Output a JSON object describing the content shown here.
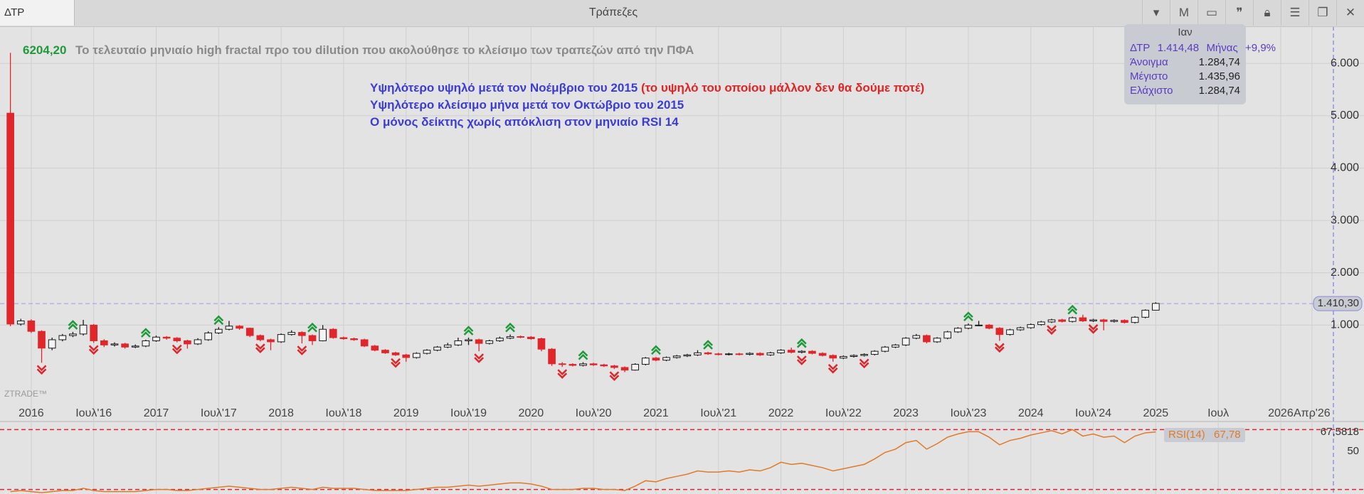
{
  "header": {
    "symbol": "ΔΤΡ",
    "title": "Τράπεζες",
    "interval": "M"
  },
  "watermark": "ZTRADE™",
  "info_box": {
    "period": "Ιαν",
    "symbol": "ΔΤΡ",
    "price": "1.414,48",
    "interval": "Μήνας",
    "change": "+9,9%",
    "rows": [
      {
        "label": "Άνοιγμα",
        "value": "1.284,74"
      },
      {
        "label": "Μέγιστο",
        "value": "1.435,96"
      },
      {
        "label": "Ελάχιστο",
        "value": "1.284,74"
      }
    ]
  },
  "chart_data": [
    {
      "type": "candlestick",
      "annotations": [
        {
          "text": "6204,20",
          "color": "#1f9a3a"
        },
        {
          "text": "Το τελευταίο μηνιαίο high fractal προ του dilution που ακολούθησε το κλείσιμο των τραπεζών από την ΠΦΑ",
          "color": "#8a8a8a"
        },
        {
          "text": "Υψηλότερο υψηλό μετά τον Νοέμβριο του 2015",
          "color": "#3b3bd8"
        },
        {
          "text": "(το υψηλό του οποίου μάλλον δεν θα δούμε ποτέ)",
          "color": "#e02424"
        },
        {
          "text": "Υψηλότερο κλείσιμο μήνα μετά τον Οκτώβριο του 2015",
          "color": "#3b3bd8"
        },
        {
          "text": "Ο μόνος δείκτης χωρίς απόκλιση στον μηνιαίο RSI 14",
          "color": "#3b3bd8"
        }
      ],
      "x": [
        "2015-11",
        "2015-12",
        "2016-01",
        "2016-02",
        "2016-03",
        "2016-04",
        "2016-05",
        "2016-06",
        "2016-07",
        "2016-08",
        "2016-09",
        "2016-10",
        "2016-11",
        "2016-12",
        "2017-01",
        "2017-02",
        "2017-03",
        "2017-04",
        "2017-05",
        "2017-06",
        "2017-07",
        "2017-08",
        "2017-09",
        "2017-10",
        "2017-11",
        "2017-12",
        "2018-01",
        "2018-02",
        "2018-03",
        "2018-04",
        "2018-05",
        "2018-06",
        "2018-07",
        "2018-08",
        "2018-09",
        "2018-10",
        "2018-11",
        "2018-12",
        "2019-01",
        "2019-02",
        "2019-03",
        "2019-04",
        "2019-05",
        "2019-06",
        "2019-07",
        "2019-08",
        "2019-09",
        "2019-10",
        "2019-11",
        "2019-12",
        "2020-01",
        "2020-02",
        "2020-03",
        "2020-04",
        "2020-05",
        "2020-06",
        "2020-07",
        "2020-08",
        "2020-09",
        "2020-10",
        "2020-11",
        "2020-12",
        "2021-01",
        "2021-02",
        "2021-03",
        "2021-04",
        "2021-05",
        "2021-06",
        "2021-07",
        "2021-08",
        "2021-09",
        "2021-10",
        "2021-11",
        "2021-12",
        "2022-01",
        "2022-02",
        "2022-03",
        "2022-04",
        "2022-05",
        "2022-06",
        "2022-07",
        "2022-08",
        "2022-09",
        "2022-10",
        "2022-11",
        "2022-12",
        "2023-01",
        "2023-02",
        "2023-03",
        "2023-04",
        "2023-05",
        "2023-06",
        "2023-07",
        "2023-08",
        "2023-09",
        "2023-10",
        "2023-11",
        "2023-12",
        "2024-01",
        "2024-02",
        "2024-03",
        "2024-04",
        "2024-05",
        "2024-06",
        "2024-07",
        "2024-08",
        "2024-09",
        "2024-10",
        "2024-11",
        "2024-12",
        "2025-01"
      ],
      "open": [
        5050,
        1020,
        1080,
        880,
        560,
        720,
        800,
        830,
        1000,
        700,
        620,
        640,
        580,
        600,
        700,
        770,
        750,
        700,
        640,
        720,
        850,
        920,
        980,
        940,
        800,
        720,
        680,
        820,
        860,
        800,
        700,
        920,
        760,
        740,
        720,
        600,
        520,
        470,
        430,
        380,
        460,
        520,
        580,
        620,
        700,
        720,
        650,
        700,
        750,
        780,
        770,
        740,
        540,
        260,
        250,
        230,
        260,
        240,
        220,
        190,
        140,
        250,
        370,
        330,
        380,
        410,
        430,
        470,
        450,
        440,
        450,
        440,
        460,
        430,
        470,
        520,
        480,
        500,
        460,
        420,
        370,
        400,
        420,
        440,
        500,
        580,
        620,
        750,
        800,
        680,
        750,
        870,
        940,
        1000,
        1000,
        940,
        820,
        910,
        950,
        1010,
        1060,
        1100,
        1070,
        1140,
        1080,
        1100,
        1070,
        1090,
        1050,
        1150,
        1284.74
      ],
      "high": [
        6204.2,
        1120,
        1110,
        900,
        760,
        830,
        870,
        1100,
        1020,
        730,
        670,
        660,
        630,
        720,
        800,
        790,
        770,
        720,
        750,
        880,
        960,
        1080,
        1000,
        950,
        820,
        740,
        840,
        900,
        880,
        820,
        1000,
        940,
        780,
        760,
        740,
        620,
        540,
        490,
        450,
        480,
        540,
        600,
        660,
        760,
        760,
        740,
        720,
        780,
        820,
        800,
        790,
        760,
        560,
        290,
        270,
        290,
        280,
        260,
        240,
        210,
        270,
        390,
        390,
        400,
        430,
        450,
        520,
        490,
        470,
        470,
        470,
        480,
        480,
        490,
        540,
        570,
        520,
        520,
        480,
        440,
        420,
        440,
        460,
        520,
        600,
        640,
        770,
        830,
        820,
        770,
        890,
        960,
        1030,
        1080,
        1020,
        960,
        930,
        970,
        1030,
        1080,
        1120,
        1120,
        1160,
        1200,
        1120,
        1120,
        1110,
        1110,
        1170,
        1300,
        1435.96
      ],
      "low": [
        980,
        990,
        850,
        280,
        520,
        690,
        770,
        800,
        660,
        580,
        590,
        550,
        560,
        580,
        680,
        720,
        670,
        550,
        620,
        700,
        830,
        900,
        910,
        770,
        690,
        520,
        660,
        800,
        650,
        620,
        690,
        740,
        720,
        700,
        580,
        500,
        450,
        410,
        300,
        360,
        440,
        500,
        560,
        600,
        620,
        500,
        630,
        680,
        730,
        750,
        720,
        500,
        220,
        200,
        210,
        210,
        220,
        200,
        160,
        100,
        130,
        230,
        310,
        310,
        360,
        390,
        410,
        430,
        420,
        420,
        420,
        420,
        410,
        410,
        450,
        460,
        460,
        440,
        400,
        300,
        350,
        380,
        400,
        420,
        480,
        560,
        600,
        730,
        650,
        660,
        730,
        850,
        920,
        980,
        920,
        700,
        800,
        890,
        930,
        990,
        1040,
        1050,
        1050,
        1060,
        1060,
        900,
        1050,
        1030,
        1030,
        1130,
        1284.74
      ],
      "close": [
        1020,
        1080,
        880,
        560,
        720,
        800,
        830,
        1000,
        700,
        620,
        640,
        580,
        600,
        700,
        770,
        750,
        700,
        640,
        720,
        850,
        920,
        980,
        940,
        800,
        720,
        680,
        820,
        860,
        800,
        700,
        920,
        760,
        740,
        720,
        600,
        520,
        470,
        430,
        380,
        460,
        520,
        580,
        620,
        700,
        720,
        650,
        700,
        750,
        780,
        770,
        740,
        540,
        260,
        250,
        230,
        260,
        240,
        220,
        190,
        140,
        250,
        370,
        330,
        380,
        410,
        430,
        470,
        450,
        440,
        450,
        440,
        460,
        430,
        470,
        520,
        480,
        500,
        460,
        420,
        370,
        400,
        420,
        440,
        500,
        580,
        620,
        750,
        800,
        680,
        750,
        870,
        940,
        1000,
        1000,
        940,
        820,
        910,
        950,
        1010,
        1060,
        1100,
        1070,
        1140,
        1080,
        1100,
        1070,
        1090,
        1050,
        1150,
        1284.74,
        1414.48
      ],
      "up_color": "#1a1a1a",
      "up_fill": "#f4f4f4",
      "down_color": "#e0262a",
      "fractals_up": [
        "2016-05",
        "2016-12",
        "2017-07",
        "2018-04",
        "2019-07",
        "2019-11",
        "2020-06",
        "2021-01",
        "2021-06",
        "2022-03",
        "2023-07",
        "2024-05"
      ],
      "fractals_down": [
        "2016-02",
        "2016-07",
        "2017-03",
        "2017-11",
        "2018-03",
        "2018-12",
        "2019-08",
        "2020-04",
        "2020-09",
        "2022-03",
        "2022-06",
        "2022-09",
        "2023-10",
        "2024-03",
        "2024-07"
      ],
      "fractal_up_color": "#1f9a3a",
      "fractal_down_color": "#e0262a",
      "last_price": {
        "value": 1410.3,
        "label": "1.410,30"
      },
      "xlim": [
        "2015-10",
        "2026-09"
      ],
      "xticks": [
        {
          "value": "2016-01",
          "label": "2016"
        },
        {
          "value": "2016-07",
          "label": "Ιουλ'16"
        },
        {
          "value": "2017-01",
          "label": "2017"
        },
        {
          "value": "2017-07",
          "label": "Ιουλ'17"
        },
        {
          "value": "2018-01",
          "label": "2018"
        },
        {
          "value": "2018-07",
          "label": "Ιουλ'18"
        },
        {
          "value": "2019-01",
          "label": "2019"
        },
        {
          "value": "2019-07",
          "label": "Ιουλ'19"
        },
        {
          "value": "2020-01",
          "label": "2020"
        },
        {
          "value": "2020-07",
          "label": "Ιουλ'20"
        },
        {
          "value": "2021-01",
          "label": "2021"
        },
        {
          "value": "2021-07",
          "label": "Ιουλ'21"
        },
        {
          "value": "2022-01",
          "label": "2022"
        },
        {
          "value": "2022-07",
          "label": "Ιουλ'22"
        },
        {
          "value": "2023-01",
          "label": "2023"
        },
        {
          "value": "2023-07",
          "label": "Ιουλ'23"
        },
        {
          "value": "2024-01",
          "label": "2024"
        },
        {
          "value": "2024-07",
          "label": "Ιουλ'24"
        },
        {
          "value": "2025-01",
          "label": "2025"
        },
        {
          "value": "2025-07",
          "label": "Ιουλ"
        },
        {
          "value": "2026-01",
          "label": "2026"
        },
        {
          "value": "2026-04",
          "label": "Απρ'26"
        }
      ],
      "ylim": [
        -435,
        6710
      ],
      "yticks": [
        {
          "value": 1000,
          "label": "1.000"
        },
        {
          "value": 2000,
          "label": "2.000"
        },
        {
          "value": 3000,
          "label": "3.000"
        },
        {
          "value": 4000,
          "label": "4.000"
        },
        {
          "value": 5000,
          "label": "5.000"
        },
        {
          "value": 6000,
          "label": "6.000"
        }
      ],
      "grid": true
    },
    {
      "type": "line",
      "name": "RSI(14)",
      "last_label": "67,78",
      "color": "#e07a2a",
      "values": [
        13,
        14,
        13,
        12,
        13,
        14,
        14,
        16,
        14,
        13,
        13,
        13,
        13,
        14,
        15,
        15,
        14,
        14,
        15,
        16,
        17,
        18,
        17,
        16,
        15,
        15,
        16,
        17,
        16,
        15,
        17,
        16,
        16,
        16,
        15,
        14,
        14,
        14,
        14,
        15,
        16,
        17,
        17,
        18,
        19,
        18,
        19,
        20,
        21,
        21,
        20,
        18,
        15,
        15,
        15,
        16,
        16,
        15,
        15,
        14,
        18,
        23,
        22,
        25,
        27,
        29,
        32,
        31,
        31,
        32,
        31,
        33,
        32,
        35,
        40,
        38,
        39,
        37,
        35,
        32,
        34,
        36,
        38,
        43,
        49,
        52,
        58,
        60,
        52,
        57,
        63,
        66,
        68,
        68,
        63,
        56,
        60,
        62,
        65,
        67,
        69,
        66,
        70,
        64,
        66,
        63,
        64,
        58,
        64,
        67,
        67.78
      ],
      "ylim": [
        10.8,
        74.8
      ],
      "yticks": [
        {
          "value": 67.5818,
          "label": "67,5818"
        },
        50
      ],
      "levels": [
        70,
        15
      ],
      "level_color": "#e0262a"
    }
  ]
}
